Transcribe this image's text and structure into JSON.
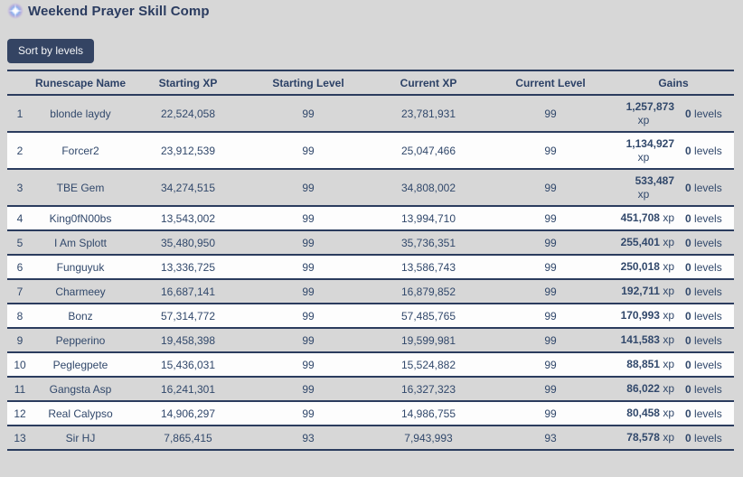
{
  "header": {
    "title": "Weekend Prayer Skill Comp",
    "icon": "prayer-sparkle"
  },
  "toolbar": {
    "sort_button_label": "Sort by levels"
  },
  "table": {
    "columns": [
      "Runescape Name",
      "Starting XP",
      "Starting Level",
      "Current XP",
      "Current Level",
      "Gains"
    ],
    "units": {
      "xp": "xp",
      "levels": "levels"
    },
    "rows": [
      {
        "rank": "1",
        "name": "blonde laydy",
        "starting_xp": "22,524,058",
        "starting_level": "99",
        "current_xp": "23,781,931",
        "current_level": "99",
        "gains_xp": "1,257,873",
        "gains_levels": "0",
        "xp_wrapped": true
      },
      {
        "rank": "2",
        "name": "Forcer2",
        "starting_xp": "23,912,539",
        "starting_level": "99",
        "current_xp": "25,047,466",
        "current_level": "99",
        "gains_xp": "1,134,927",
        "gains_levels": "0",
        "xp_wrapped": true
      },
      {
        "rank": "3",
        "name": "TBE Gem",
        "starting_xp": "34,274,515",
        "starting_level": "99",
        "current_xp": "34,808,002",
        "current_level": "99",
        "gains_xp": "533,487",
        "gains_levels": "0",
        "xp_wrapped": true
      },
      {
        "rank": "4",
        "name": "King0fN00bs",
        "starting_xp": "13,543,002",
        "starting_level": "99",
        "current_xp": "13,994,710",
        "current_level": "99",
        "gains_xp": "451,708",
        "gains_levels": "0",
        "xp_wrapped": false
      },
      {
        "rank": "5",
        "name": "I Am Splott",
        "starting_xp": "35,480,950",
        "starting_level": "99",
        "current_xp": "35,736,351",
        "current_level": "99",
        "gains_xp": "255,401",
        "gains_levels": "0",
        "xp_wrapped": false
      },
      {
        "rank": "6",
        "name": "Funguyuk",
        "starting_xp": "13,336,725",
        "starting_level": "99",
        "current_xp": "13,586,743",
        "current_level": "99",
        "gains_xp": "250,018",
        "gains_levels": "0",
        "xp_wrapped": false
      },
      {
        "rank": "7",
        "name": "Charmeey",
        "starting_xp": "16,687,141",
        "starting_level": "99",
        "current_xp": "16,879,852",
        "current_level": "99",
        "gains_xp": "192,711",
        "gains_levels": "0",
        "xp_wrapped": false
      },
      {
        "rank": "8",
        "name": "Bonz",
        "starting_xp": "57,314,772",
        "starting_level": "99",
        "current_xp": "57,485,765",
        "current_level": "99",
        "gains_xp": "170,993",
        "gains_levels": "0",
        "xp_wrapped": false
      },
      {
        "rank": "9",
        "name": "Pepperino",
        "starting_xp": "19,458,398",
        "starting_level": "99",
        "current_xp": "19,599,981",
        "current_level": "99",
        "gains_xp": "141,583",
        "gains_levels": "0",
        "xp_wrapped": false
      },
      {
        "rank": "10",
        "name": "Peglegpete",
        "starting_xp": "15,436,031",
        "starting_level": "99",
        "current_xp": "15,524,882",
        "current_level": "99",
        "gains_xp": "88,851",
        "gains_levels": "0",
        "xp_wrapped": false
      },
      {
        "rank": "11",
        "name": "Gangsta Asp",
        "starting_xp": "16,241,301",
        "starting_level": "99",
        "current_xp": "16,327,323",
        "current_level": "99",
        "gains_xp": "86,022",
        "gains_levels": "0",
        "xp_wrapped": false
      },
      {
        "rank": "12",
        "name": "Real Calypso",
        "starting_xp": "14,906,297",
        "starting_level": "99",
        "current_xp": "14,986,755",
        "current_level": "99",
        "gains_xp": "80,458",
        "gains_levels": "0",
        "xp_wrapped": false
      },
      {
        "rank": "13",
        "name": "Sir HJ",
        "starting_xp": "7,865,415",
        "starting_level": "93",
        "current_xp": "7,943,993",
        "current_level": "93",
        "gains_xp": "78,578",
        "gains_levels": "0",
        "xp_wrapped": false
      }
    ]
  },
  "colors": {
    "page_background": "#d7d7d7",
    "row_white": "#fdfdfd",
    "row_border": "#2b3c5e",
    "text_navy": "#31486b",
    "button_background": "#344463",
    "button_text": "#f4f5f7"
  }
}
